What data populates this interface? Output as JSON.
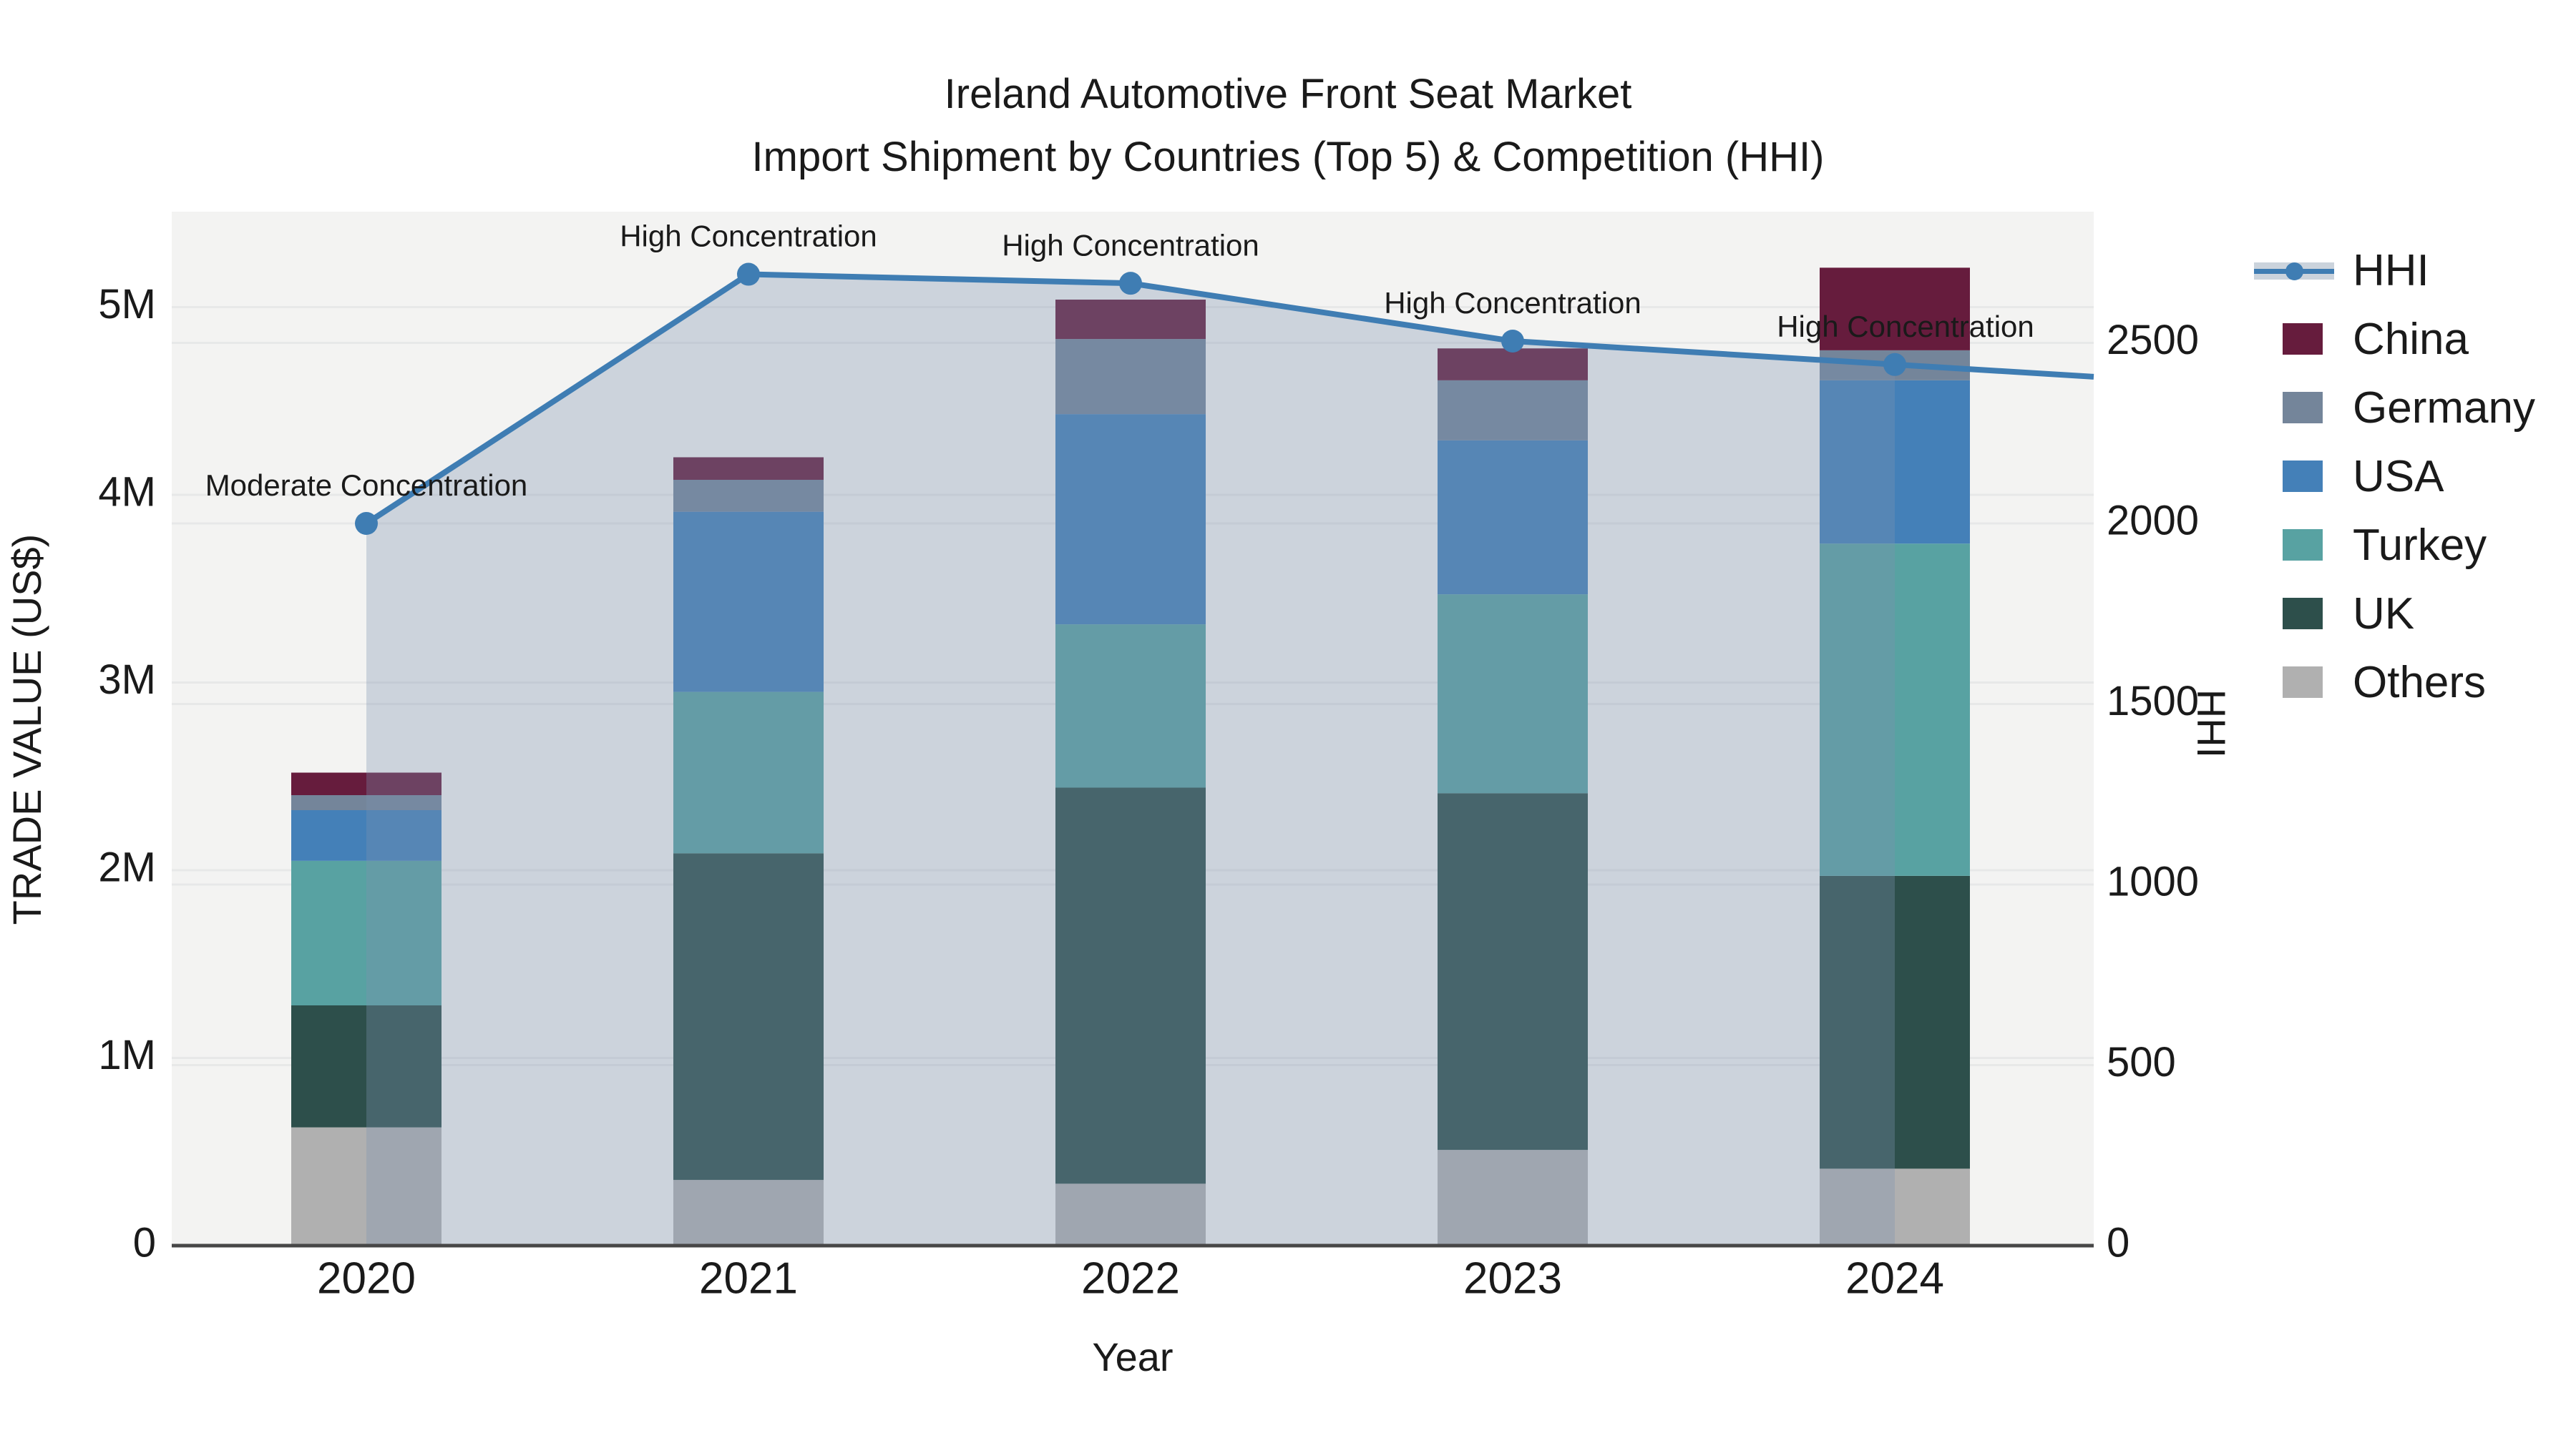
{
  "title": {
    "line1": "Ireland Automotive Front Seat Market",
    "line2": "Import Shipment by Countries (Top 5) & Competition (HHI)"
  },
  "legend": {
    "items": [
      {
        "label": "HHI",
        "type": "line",
        "color": "#3f7db3"
      },
      {
        "label": "China",
        "type": "box",
        "color": "#661c3d"
      },
      {
        "label": "Germany",
        "type": "box",
        "color": "#74859a"
      },
      {
        "label": "USA",
        "type": "box",
        "color": "#4480b8"
      },
      {
        "label": "Turkey",
        "type": "box",
        "color": "#58a2a2"
      },
      {
        "label": "UK",
        "type": "box",
        "color": "#2d4f4b"
      },
      {
        "label": "Others",
        "type": "box",
        "color": "#b0b0b0"
      }
    ]
  },
  "colors": {
    "plot_bg": "#f3f3f2",
    "grid": "#e7e8e8",
    "axis_line": "#474747",
    "text": "#1a1a1a",
    "hhi_line": "#3f7db3",
    "area_fill": "rgba(125,145,176,0.33)"
  },
  "chart_data": {
    "type": "combo (stacked bar + line)",
    "title": "Ireland Automotive Front Seat Market — Import Shipment by Countries (Top 5) & Competition (HHI)",
    "x": [
      "2020",
      "2021",
      "2022",
      "2023",
      "2024"
    ],
    "x_axis_label": "Year",
    "bar_value_unit": "million US$",
    "stack_order_bottom_to_top": [
      "Others",
      "UK",
      "Turkey",
      "USA",
      "Germany",
      "China"
    ],
    "series": [
      {
        "name": "Others",
        "type": "bar",
        "color": "#b0b0b0",
        "values": [
          0.63,
          0.35,
          0.33,
          0.51,
          0.41
        ]
      },
      {
        "name": "UK",
        "type": "bar",
        "color": "#2d4f4b",
        "values": [
          0.65,
          1.74,
          2.11,
          1.9,
          1.56
        ]
      },
      {
        "name": "Turkey",
        "type": "bar",
        "color": "#58a2a2",
        "values": [
          0.77,
          0.86,
          0.87,
          1.06,
          1.77
        ]
      },
      {
        "name": "USA",
        "type": "bar",
        "color": "#4480b8",
        "values": [
          0.27,
          0.96,
          1.12,
          0.82,
          0.87
        ]
      },
      {
        "name": "Germany",
        "type": "bar",
        "color": "#74859a",
        "values": [
          0.08,
          0.17,
          0.4,
          0.32,
          0.16
        ]
      },
      {
        "name": "China",
        "type": "bar",
        "color": "#661c3d",
        "values": [
          0.12,
          0.12,
          0.21,
          0.17,
          0.44
        ]
      }
    ],
    "bar_totals": [
      2.52,
      4.2,
      5.04,
      4.78,
      5.21
    ],
    "line_series": {
      "name": "HHI",
      "color": "#3f7db3",
      "area_color": "rgba(125,145,176,0.33)",
      "values": [
        2000,
        2690,
        2665,
        2505,
        2440
      ]
    },
    "annotations": [
      {
        "x": "2020",
        "text": "Moderate Concentration"
      },
      {
        "x": "2021",
        "text": "High Concentration"
      },
      {
        "x": "2022",
        "text": "High Concentration"
      },
      {
        "x": "2023",
        "text": "High Concentration"
      },
      {
        "x": "2024",
        "text": "High Concentration"
      }
    ],
    "left_axis": {
      "label": "TRADE VALUE (US$)",
      "ticks": [
        "0",
        "1M",
        "2M",
        "3M",
        "4M",
        "5M"
      ],
      "tick_values": [
        0,
        1,
        2,
        3,
        4,
        5
      ],
      "range": [
        0,
        5.51
      ]
    },
    "right_axis": {
      "label": "HHI",
      "ticks": [
        "0",
        "500",
        "1000",
        "1500",
        "2000",
        "2500"
      ],
      "tick_values": [
        0,
        500,
        1000,
        1500,
        2000,
        2500
      ],
      "range": [
        0,
        2866
      ]
    },
    "grid": true,
    "legend_position": "right"
  }
}
